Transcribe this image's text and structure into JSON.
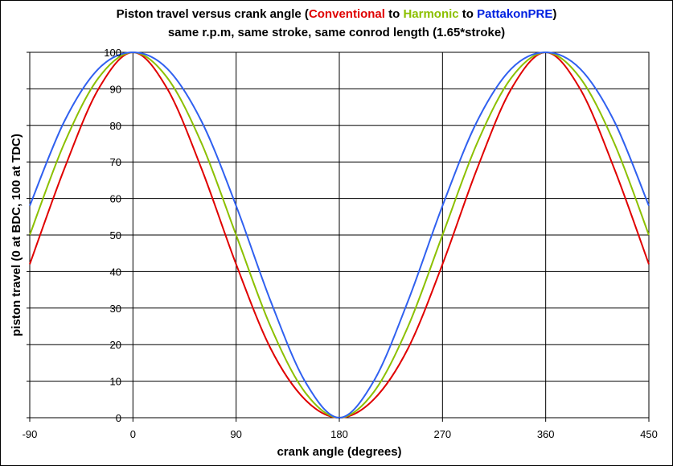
{
  "chart_data": {
    "type": "line",
    "title": {
      "part1": "Piston travel versus crank angle (",
      "conventional": "Conventional",
      "to1": " to ",
      "harmonic": "Harmonic",
      "to2": " to ",
      "pattakon": "PattakonPRE",
      "close": ")"
    },
    "subtitle": "same r.p.m, same stroke, same conrod length (1.65*stroke)",
    "xlabel": "crank angle (degrees)",
    "ylabel": "piston travel (0 at BDC, 100 at TDC)",
    "xlim": [
      -90,
      450
    ],
    "ylim": [
      0,
      100
    ],
    "x_ticks": [
      "-90",
      "0",
      "90",
      "180",
      "270",
      "360",
      "450"
    ],
    "y_ticks": [
      "0",
      "10",
      "20",
      "30",
      "40",
      "50",
      "60",
      "70",
      "80",
      "90",
      "100"
    ],
    "grid": true,
    "x": [
      -90,
      -60,
      -30,
      0,
      30,
      60,
      90,
      120,
      150,
      180,
      210,
      240,
      270,
      300,
      330,
      360,
      390,
      420,
      450
    ],
    "series": [
      {
        "name": "Conventional",
        "color": "#e00000",
        "values": [
          42,
          68,
          90,
          100,
          90,
          68,
          42,
          19,
          5,
          0,
          5,
          19,
          42,
          68,
          90,
          100,
          90,
          68,
          42
        ]
      },
      {
        "name": "Harmonic",
        "color": "#8cc000",
        "values": [
          50,
          75,
          93,
          100,
          93,
          75,
          50,
          25,
          7,
          0,
          7,
          25,
          50,
          75,
          93,
          100,
          93,
          75,
          50
        ]
      },
      {
        "name": "PattakonPRE",
        "color": "#3060f0",
        "values": [
          58,
          81,
          95.5,
          100,
          95.5,
          81,
          58,
          32,
          10,
          0,
          10,
          32,
          58,
          81,
          95.5,
          100,
          95.5,
          81,
          58
        ]
      }
    ]
  }
}
